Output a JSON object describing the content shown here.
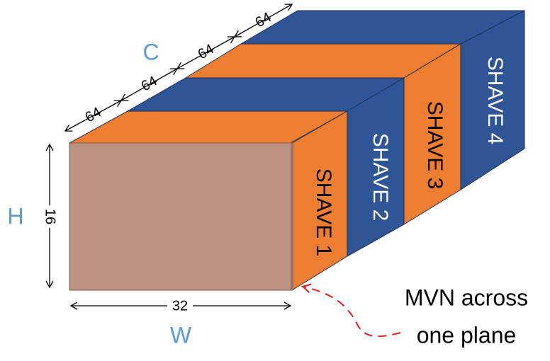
{
  "axes": {
    "channel_label": "C",
    "height_label": "H",
    "width_label": "W"
  },
  "dimensions": {
    "height_value": "16",
    "width_value": "32",
    "channel_segments": [
      "64",
      "64",
      "64",
      "64"
    ]
  },
  "slices": [
    {
      "label": "SHAVE 1",
      "color": "#ed7d31"
    },
    {
      "label": "SHAVE 2",
      "color": "#2f5597"
    },
    {
      "label": "SHAVE 3",
      "color": "#ed7d31"
    },
    {
      "label": "SHAVE 4",
      "color": "#2f5597"
    }
  ],
  "front_face_color": "#bd9182",
  "annotation": {
    "line1": "MVN across",
    "line2": "one plane",
    "arrow_color": "#e02020"
  },
  "label_color": "#5b9bd5"
}
